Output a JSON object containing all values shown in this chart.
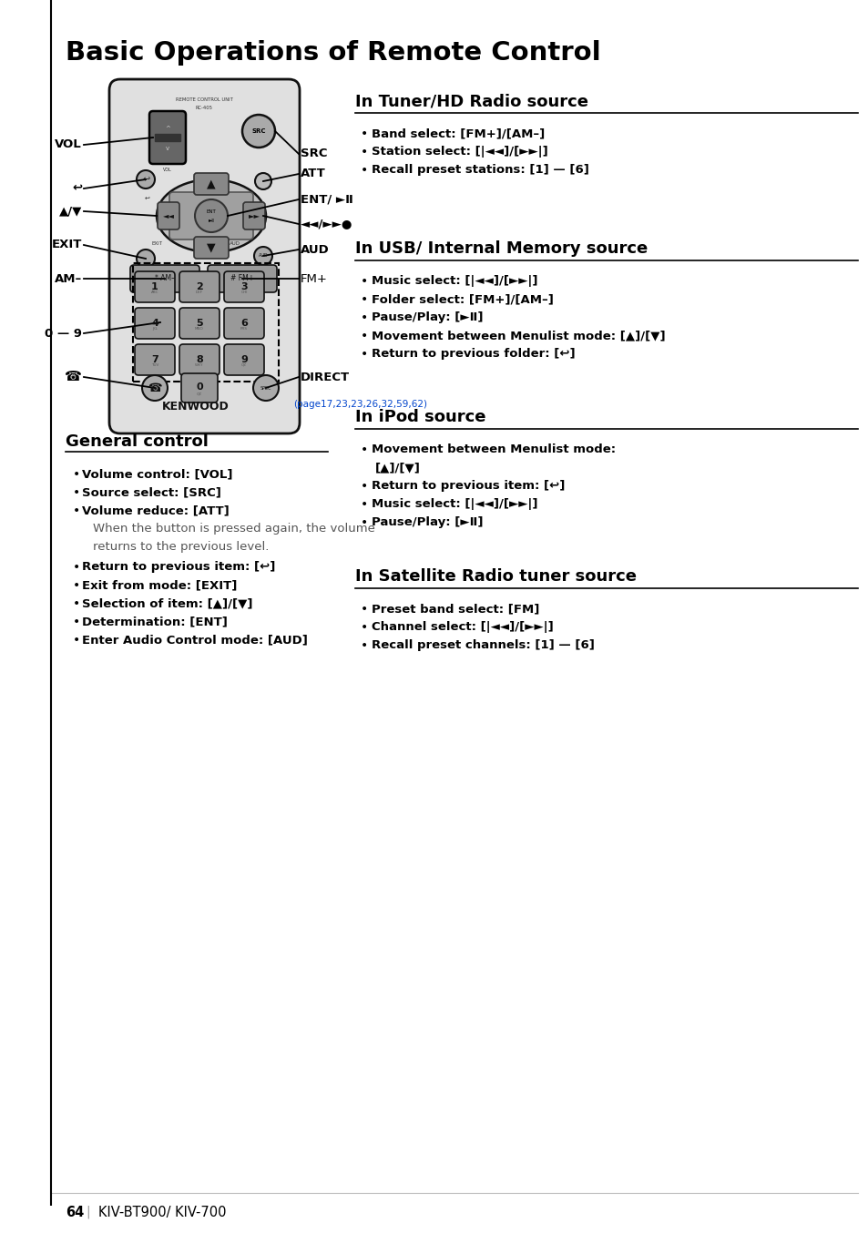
{
  "title": "Basic Operations of Remote Control",
  "bg_color": "#ffffff",
  "page_num": "64",
  "page_model": "KIV-BT900/ KIV-700",
  "page_ref": "(page17,23,23,26,32,59,62)",
  "tuner_heading": "In Tuner/HD Radio source",
  "tuner_bullets": [
    [
      "Band select: ",
      "[FM+]/[AM–]"
    ],
    [
      "Station select: ",
      "[|◄◄]/[►►|]"
    ],
    [
      "Recall preset stations: ",
      "[1] — [6]"
    ]
  ],
  "usb_heading": "In USB/ Internal Memory source",
  "usb_bullets": [
    [
      "Music select: ",
      "[|◄◄]/[►►|]"
    ],
    [
      "Folder select: ",
      "[FM+]/[AM–]"
    ],
    [
      "Pause/Play: ",
      "[►Ⅱ]"
    ],
    [
      "Movement between Menulist mode: ",
      "[▲]/[▼]"
    ],
    [
      "Return to previous folder: ",
      "[↩]"
    ]
  ],
  "ipod_heading": "In iPod source",
  "ipod_bullets_line1": "Movement between Menulist mode:",
  "ipod_bullets_line2": "[▲]/[▼]",
  "ipod_bullets_rest": [
    [
      "Return to previous item: ",
      "[↩]"
    ],
    [
      "Music select: ",
      "[|◄◄]/[►►|]"
    ],
    [
      "Pause/Play: ",
      "[►Ⅱ]"
    ]
  ],
  "sat_heading": "In Satellite Radio tuner source",
  "sat_bullets": [
    [
      "Preset band select: ",
      "[FM]"
    ],
    [
      "Channel select: ",
      "[|◄◄]/[►►|]"
    ],
    [
      "Recall preset channels: ",
      "[1] — [6]"
    ]
  ],
  "gc_heading": "General control",
  "gc_bullets": [
    [
      "Volume control: ",
      "[VOL]"
    ],
    [
      "Source select: ",
      "[SRC]"
    ],
    [
      "Volume reduce: ",
      "[ATT]"
    ],
    [
      "When the button is pressed again, the volume",
      ""
    ],
    [
      "returns to the previous level.",
      ""
    ],
    [
      "Return to previous item: ",
      "[↩]"
    ],
    [
      "Exit from mode: ",
      "[EXIT]"
    ],
    [
      "Selection of item: ",
      "[▲]/[▼]"
    ],
    [
      "Determination: ",
      "[ENT]"
    ],
    [
      "Enter Audio Control mode: ",
      "[AUD]"
    ]
  ],
  "left_labels": [
    "VOL",
    "↩",
    "▲/▼",
    "EXIT",
    "AM–",
    "0 — 9",
    "☎"
  ],
  "right_labels": [
    "SRC",
    "ATT",
    "ENT/ ►Ⅱ",
    "◄◄/►►●",
    "AUD",
    "FM+",
    "DIRECT"
  ]
}
